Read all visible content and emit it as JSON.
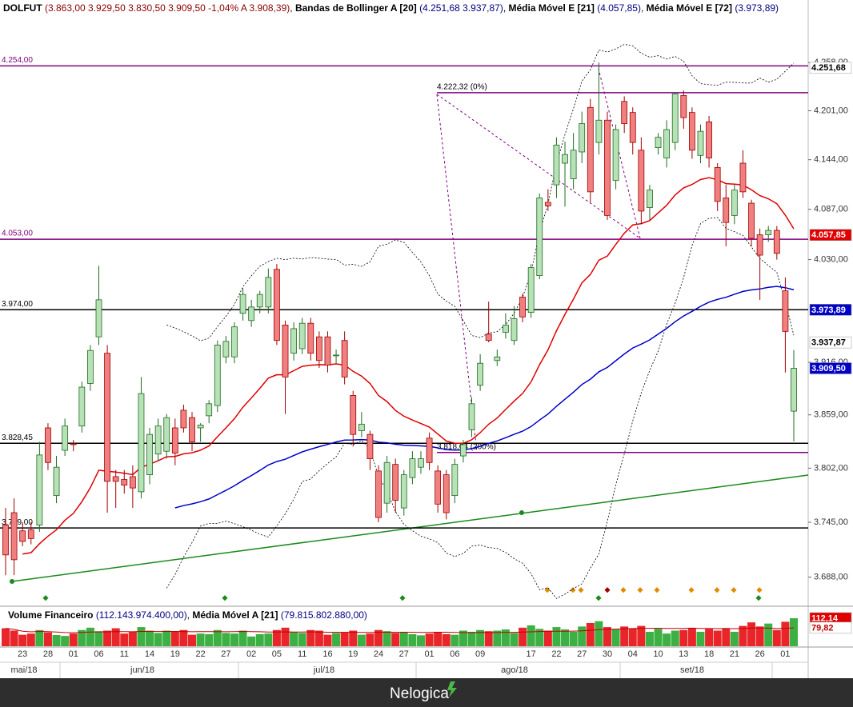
{
  "header": {
    "symbol": "DOLFUT",
    "quote": "(3.863,00  3.929,50  3.830,50  3.909,50  -1,04%  A 3.908,39)",
    "bb_name": "Bandas de Bollinger A [20]",
    "bb_values": "(4.251,68  3.937,87)",
    "ema21_name": "Média Móvel E [21]",
    "ema21_value": "(4.057,85)",
    "ema72_name": "Média Móvel E [72]",
    "ema72_value": "(3.973,89)"
  },
  "chart_data": [
    {
      "type": "candlestick",
      "log": true,
      "ylim": [
        3659,
        4333
      ],
      "categories": [
        null,
        null,
        "23",
        null,
        null,
        "28",
        null,
        null,
        "01",
        null,
        null,
        "06",
        null,
        null,
        "11",
        null,
        null,
        "14",
        null,
        null,
        "19",
        null,
        null,
        "22",
        null,
        null,
        "27",
        null,
        null,
        "02",
        null,
        null,
        "05",
        null,
        null,
        "11",
        null,
        null,
        "16",
        null,
        null,
        "19",
        null,
        null,
        "24",
        null,
        null,
        "27",
        null,
        null,
        "01",
        null,
        null,
        "06",
        null,
        null,
        "09",
        null,
        null,
        null,
        null,
        null,
        "17",
        null,
        null,
        "22",
        null,
        null,
        "27",
        null,
        null,
        "30",
        null,
        null,
        "04",
        null,
        null,
        "10",
        null,
        null,
        "13",
        null,
        null,
        "18",
        null,
        null,
        "21",
        null,
        null,
        "26",
        null,
        null,
        "01",
        null
      ],
      "open": [
        3742,
        3755,
        3736,
        3737,
        3742,
        3845,
        3773,
        3821,
        3828,
        3847,
        3893,
        3944,
        3926,
        3793,
        3790,
        3793,
        3777,
        3795,
        3817,
        3820,
        3845,
        3864,
        3856,
        3845,
        3858,
        3869,
        3922,
        3922,
        3970,
        3962,
        3977,
        3977,
        4019,
        3957,
        3926,
        3931,
        3959,
        3944,
        3944,
        3924,
        3940,
        3880,
        3842,
        3838,
        3799,
        3765,
        3806,
        3760,
        3792,
        3803,
        3834,
        3799,
        3795,
        3773,
        3815,
        3843,
        3891,
        3947,
        3918,
        3949,
        3940,
        3988,
        3971,
        4012,
        4095,
        4115,
        4140,
        4122,
        4153,
        4205,
        4164,
        4190,
        4120,
        4212,
        4199,
        4155,
        4089,
        4158,
        4146,
        4164,
        4219,
        4199,
        4149,
        4188,
        4135,
        4100,
        4080,
        4140,
        4094,
        4058,
        4058,
        4063,
        3995,
        3863
      ],
      "high": [
        3760,
        3770,
        3745,
        3745,
        3830,
        3850,
        3815,
        3855,
        3832,
        3895,
        3935,
        4023,
        3935,
        3800,
        3800,
        3805,
        3900,
        3845,
        3855,
        3860,
        3855,
        3870,
        3862,
        3850,
        3875,
        3940,
        3945,
        3960,
        3998,
        3985,
        3995,
        4020,
        4025,
        3962,
        3960,
        3965,
        3965,
        3950,
        3950,
        3930,
        3950,
        3885,
        3862,
        3842,
        3805,
        3815,
        3812,
        3800,
        3820,
        3820,
        3840,
        3805,
        3800,
        3812,
        3832,
        3878,
        3925,
        3983,
        3930,
        3970,
        3978,
        3992,
        4025,
        4105,
        4110,
        4170,
        4165,
        4175,
        4200,
        4215,
        4258,
        4200,
        4185,
        4218,
        4205,
        4170,
        4115,
        4175,
        4190,
        4222,
        4225,
        4205,
        4185,
        4195,
        4140,
        4115,
        4115,
        4155,
        4098,
        4065,
        4068,
        4068,
        4010,
        3929.5
      ],
      "low": [
        3690,
        3690,
        3720,
        3722,
        3735,
        3800,
        3765,
        3815,
        3820,
        3840,
        3885,
        3935,
        3755,
        3760,
        3775,
        3760,
        3770,
        3785,
        3810,
        3812,
        3805,
        3840,
        3820,
        3830,
        3850,
        3862,
        3915,
        3915,
        3962,
        3955,
        3970,
        3970,
        3935,
        3860,
        3918,
        3925,
        3918,
        3910,
        3905,
        3915,
        3892,
        3825,
        3835,
        3800,
        3745,
        3755,
        3755,
        3752,
        3785,
        3796,
        3800,
        3755,
        3748,
        3765,
        3808,
        3835,
        3885,
        3938,
        3912,
        3942,
        3935,
        3960,
        3965,
        4008,
        4085,
        4100,
        4090,
        4110,
        4140,
        4095,
        4150,
        4075,
        4110,
        4175,
        4150,
        4070,
        4075,
        4150,
        4135,
        4155,
        4180,
        4145,
        4140,
        4135,
        4085,
        4045,
        4070,
        4100,
        4045,
        3985,
        4050,
        4030,
        3905,
        3830.5
      ],
      "close": [
        3711,
        3706,
        3725,
        3728,
        3816,
        3808,
        3803,
        3847,
        3827,
        3889,
        3929,
        3985,
        3788,
        3788,
        3784,
        3781,
        3882,
        3838,
        3847,
        3856,
        3818,
        3845,
        3830,
        3848,
        3871,
        3935,
        3939,
        3955,
        3991,
        3977,
        3991,
        4010,
        3940,
        3900,
        3953,
        3959,
        3926,
        3918,
        3913,
        3924,
        3900,
        3838,
        3849,
        3812,
        3750,
        3808,
        3768,
        3795,
        3812,
        3812,
        3808,
        3764,
        3755,
        3806,
        3827,
        3871,
        3915,
        3940,
        3922,
        3957,
        3964,
        3966,
        4021,
        4100,
        4091,
        4161,
        4150,
        4155,
        4186,
        4107,
        4190,
        4080,
        4179,
        4186,
        4164,
        4085,
        4109,
        4170,
        4179,
        4221,
        4193,
        4155,
        4177,
        4146,
        4096,
        4072,
        4109,
        4107,
        4054,
        4035,
        4063,
        4037,
        3950,
        3909.5
      ],
      "up_color": "#b7e1b7",
      "down_color": "#f08080",
      "yticks": [
        {
          "value": 4258,
          "label": "4.258,00"
        },
        {
          "value": 4201,
          "label": "4.201,00"
        },
        {
          "value": 4144,
          "label": "4.144,00"
        },
        {
          "value": 4087,
          "label": "4.087,00"
        },
        {
          "value": 4030,
          "label": "4.030,00"
        },
        {
          "value": 3916,
          "label": "3.916,00"
        },
        {
          "value": 3859,
          "label": "3.859,00"
        },
        {
          "value": 3802,
          "label": "3.802,00"
        },
        {
          "value": 3745,
          "label": "3.745,00"
        },
        {
          "value": 3688,
          "label": "3.688,00"
        }
      ],
      "levels": [
        {
          "value": 4254,
          "label": "4.254,00",
          "color": "#800080"
        },
        {
          "value": 4053,
          "label": "4.053,00",
          "color": "#800080"
        },
        {
          "value": 3974,
          "label": "3.974,00",
          "color": "#000000"
        },
        {
          "value": 3828.45,
          "label": "3.828,45",
          "color": "#000000"
        },
        {
          "value": 3739,
          "label": "3.739,00",
          "color": "#000000"
        }
      ],
      "fib_levels": [
        {
          "value": 4222.32,
          "label": "4.222,32 (0%)",
          "color": "#800080"
        },
        {
          "value": 3818.64,
          "label": "3.818,64 (200%)",
          "color": "#800080"
        }
      ],
      "badges": [
        {
          "value": 4251.68,
          "label": "4.251,68",
          "bg": "#ffffff",
          "fg": "#000000"
        },
        {
          "value": 4057.85,
          "label": "4.057,85",
          "bg": "#e00000",
          "fg": "#ffffff"
        },
        {
          "value": 3973.89,
          "label": "3.973,89",
          "bg": "#0000c8",
          "fg": "#ffffff"
        },
        {
          "value": 3937.87,
          "label": "3.937,87",
          "bg": "#ffffff",
          "fg": "#000000"
        },
        {
          "value": 3909.5,
          "label": "3.909,50",
          "bg": "#0000c8",
          "fg": "#ffffff"
        }
      ]
    },
    {
      "type": "bar",
      "title": "Volume Financeiro",
      "title_value": "(112.143.974.400,00)",
      "ma_name": "Média Móvel A [21]",
      "ma_value": "(79.815.802.880,00)",
      "ylim": [
        17,
        142
      ],
      "values": [
        78,
        70,
        56,
        60,
        72,
        64,
        55,
        52,
        60,
        72,
        80,
        68,
        70,
        78,
        60,
        66,
        82,
        70,
        62,
        70,
        66,
        72,
        56,
        60,
        58,
        72,
        62,
        60,
        70,
        50,
        58,
        60,
        72,
        80,
        66,
        62,
        72,
        70,
        56,
        62,
        64,
        70,
        56,
        60,
        72,
        68,
        62,
        66,
        58,
        54,
        60,
        66,
        58,
        56,
        70,
        66,
        72,
        68,
        70,
        74,
        62,
        80,
        88,
        76,
        70,
        82,
        74,
        66,
        84,
        96,
        102,
        82,
        76,
        84,
        78,
        86,
        66,
        76,
        60,
        70,
        72,
        78,
        66,
        76,
        70,
        78,
        66,
        86,
        98,
        84,
        94,
        72,
        100,
        112.14
      ],
      "badges": [
        {
          "value": 112.14,
          "label": "112,14",
          "bg": "#e00000",
          "fg": "#ffffff"
        },
        {
          "value": 79.82,
          "label": "79,82",
          "bg": "#ffffff",
          "fg": "#c00000"
        }
      ]
    }
  ],
  "months": [
    "mai/18",
    "jun/18",
    "jul/18",
    "ago/18",
    "set/18"
  ],
  "footer": "Nelogica"
}
